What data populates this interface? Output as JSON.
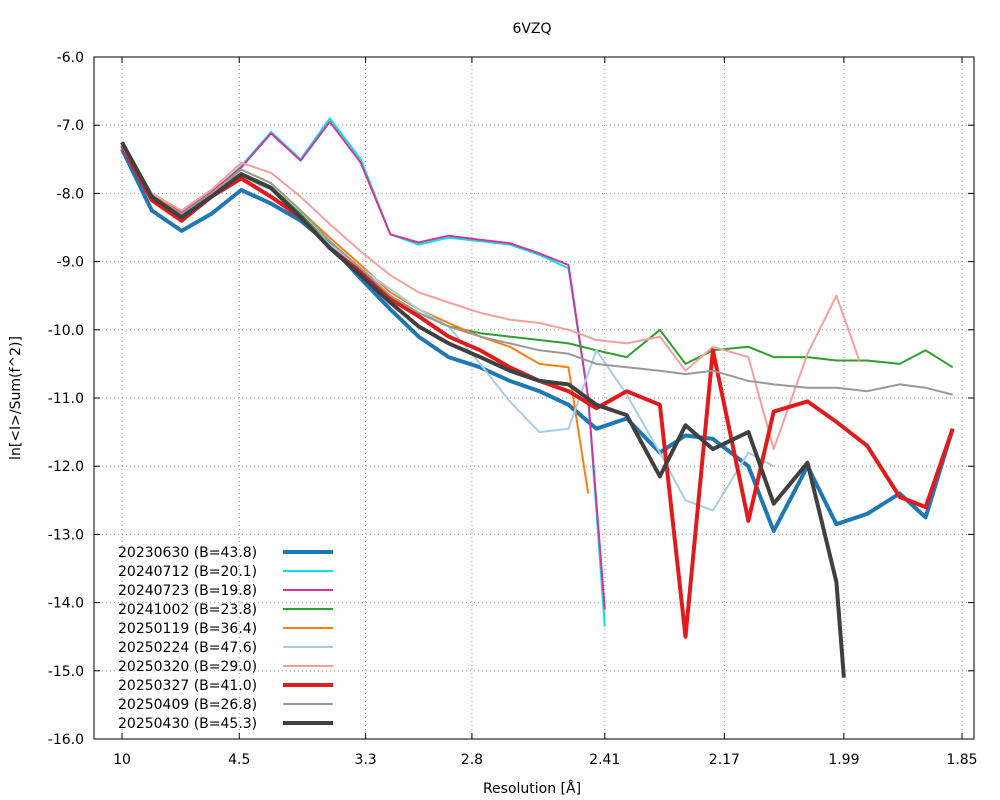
{
  "chart_data": {
    "type": "line",
    "title": "6VZQ",
    "xlabel": "Resolution [Å]",
    "ylabel": "ln[<I>/Sum(f^2)]",
    "x_ticks": [
      "10",
      "4.5",
      "3.3",
      "2.8",
      "2.41",
      "2.17",
      "1.99",
      "1.85"
    ],
    "x_tick_values": [
      10,
      4.5,
      3.3,
      2.8,
      2.41,
      2.17,
      1.99,
      1.85
    ],
    "x_scale": "inverse-square (1/d^2)",
    "xlim": [
      10,
      1.85
    ],
    "ylim": [
      -16.0,
      -6.0
    ],
    "y_ticks": [
      "-6.0",
      "-7.0",
      "-8.0",
      "-9.0",
      "-10.0",
      "-11.0",
      "-12.0",
      "-13.0",
      "-14.0",
      "-15.0",
      "-16.0"
    ],
    "grid": true,
    "legend_position": "bottom-left",
    "series": [
      {
        "name": "20230630 (B=43.8)",
        "color": "#1f77b4",
        "width": "thick",
        "x": [
          10,
          7.07,
          5.77,
          5.0,
          4.47,
          4.08,
          3.78,
          3.54,
          3.33,
          3.16,
          3.02,
          2.89,
          2.77,
          2.67,
          2.58,
          2.5,
          2.43,
          2.36,
          2.29,
          2.24,
          2.19,
          2.13,
          2.09,
          2.04,
          2.0,
          1.96,
          1.92,
          1.89,
          1.86
        ],
        "y": [
          -7.35,
          -8.25,
          -8.55,
          -8.3,
          -7.95,
          -8.15,
          -8.4,
          -8.75,
          -9.25,
          -9.7,
          -10.1,
          -10.4,
          -10.55,
          -10.75,
          -10.9,
          -11.1,
          -11.45,
          -11.3,
          -11.8,
          -11.55,
          -11.6,
          -12.0,
          -12.95,
          -12.0,
          -12.85,
          -12.7,
          -12.4,
          -12.75,
          -11.45
        ]
      },
      {
        "name": "20240712 (B=20.1)",
        "color": "#00e5e5",
        "width": "normal",
        "x": [
          10,
          7.07,
          5.77,
          5.0,
          4.47,
          4.08,
          3.78,
          3.54,
          3.33,
          3.16,
          3.02,
          2.89,
          2.77,
          2.67,
          2.58,
          2.5,
          2.45,
          2.41
        ],
        "y": [
          -7.3,
          -8.05,
          -8.3,
          -8.0,
          -7.6,
          -7.1,
          -7.5,
          -6.9,
          -7.5,
          -8.6,
          -8.75,
          -8.65,
          -8.7,
          -8.75,
          -8.9,
          -9.1,
          -11.0,
          -14.35
        ]
      },
      {
        "name": "20240723 (B=19.8)",
        "color": "#d6339b",
        "width": "normal",
        "x": [
          10,
          7.07,
          5.77,
          5.0,
          4.47,
          4.08,
          3.78,
          3.54,
          3.33,
          3.16,
          3.02,
          2.89,
          2.77,
          2.67,
          2.58,
          2.5,
          2.45,
          2.41
        ],
        "y": [
          -7.28,
          -8.03,
          -8.28,
          -7.98,
          -7.62,
          -7.12,
          -7.52,
          -6.95,
          -7.55,
          -8.6,
          -8.72,
          -8.62,
          -8.68,
          -8.73,
          -8.88,
          -9.05,
          -11.0,
          -14.1
        ]
      },
      {
        "name": "20241002 (B=23.8)",
        "color": "#2ca02c",
        "width": "normal",
        "x": [
          10,
          7.07,
          5.77,
          5.0,
          4.47,
          4.08,
          3.78,
          3.54,
          3.33,
          3.16,
          3.02,
          2.89,
          2.77,
          2.67,
          2.58,
          2.5,
          2.43,
          2.36,
          2.29,
          2.24,
          2.19,
          2.13,
          2.09,
          2.04,
          2.0,
          1.96,
          1.92,
          1.89,
          1.86
        ],
        "y": [
          -7.3,
          -8.05,
          -8.3,
          -8.0,
          -7.7,
          -7.9,
          -8.3,
          -8.75,
          -9.2,
          -9.5,
          -9.75,
          -9.95,
          -10.05,
          -10.1,
          -10.15,
          -10.2,
          -10.3,
          -10.4,
          -10.0,
          -10.5,
          -10.3,
          -10.25,
          -10.4,
          -10.4,
          -10.45,
          -10.45,
          -10.5,
          -10.3,
          -10.55
        ]
      },
      {
        "name": "20250119 (B=36.4)",
        "color": "#ff7f0e",
        "width": "normal",
        "x": [
          10,
          7.07,
          5.77,
          5.0,
          4.47,
          4.08,
          3.78,
          3.54,
          3.33,
          3.16,
          3.02,
          2.89,
          2.77,
          2.67,
          2.58,
          2.5,
          2.45
        ],
        "y": [
          -7.28,
          -8.02,
          -8.3,
          -8.02,
          -7.65,
          -7.85,
          -8.25,
          -8.65,
          -9.05,
          -9.45,
          -9.7,
          -9.9,
          -10.1,
          -10.25,
          -10.5,
          -10.55,
          -12.4
        ]
      },
      {
        "name": "20250224 (B=47.6)",
        "color": "#a6cee3",
        "width": "normal",
        "x": [
          10,
          7.07,
          5.77,
          5.0,
          4.47,
          4.08,
          3.78,
          3.54,
          3.33,
          3.16,
          3.02,
          2.89,
          2.77,
          2.67,
          2.58,
          2.5,
          2.43,
          2.36,
          2.29,
          2.24,
          2.19,
          2.13,
          2.09
        ],
        "y": [
          -7.3,
          -8.08,
          -8.35,
          -8.05,
          -7.75,
          -7.95,
          -8.35,
          -8.75,
          -9.1,
          -9.4,
          -9.7,
          -9.95,
          -10.5,
          -11.05,
          -11.5,
          -11.45,
          -10.3,
          -10.95,
          -11.8,
          -12.5,
          -12.65,
          -11.8,
          -12.0
        ]
      },
      {
        "name": "20250320 (B=29.0)",
        "color": "#f4a09c",
        "width": "normal",
        "x": [
          10,
          7.07,
          5.77,
          5.0,
          4.47,
          4.08,
          3.78,
          3.54,
          3.33,
          3.16,
          3.02,
          2.89,
          2.77,
          2.67,
          2.58,
          2.5,
          2.43,
          2.36,
          2.29,
          2.24,
          2.19,
          2.13,
          2.09,
          2.04,
          2.0,
          1.97
        ],
        "y": [
          -7.25,
          -8.0,
          -8.25,
          -7.95,
          -7.55,
          -7.7,
          -8.05,
          -8.45,
          -8.85,
          -9.2,
          -9.45,
          -9.6,
          -9.75,
          -9.85,
          -9.9,
          -10.0,
          -10.15,
          -10.2,
          -10.1,
          -10.6,
          -10.25,
          -10.4,
          -11.75,
          -10.35,
          -9.5,
          -10.45
        ]
      },
      {
        "name": "20250327 (B=41.0)",
        "color": "#e31a1c",
        "width": "thick",
        "x": [
          10,
          7.07,
          5.77,
          5.0,
          4.47,
          4.08,
          3.78,
          3.54,
          3.33,
          3.16,
          3.02,
          2.89,
          2.77,
          2.67,
          2.58,
          2.5,
          2.43,
          2.36,
          2.29,
          2.24,
          2.19,
          2.13,
          2.09,
          2.04,
          2.0,
          1.96,
          1.92,
          1.89,
          1.86
        ],
        "y": [
          -7.3,
          -8.1,
          -8.4,
          -8.05,
          -7.78,
          -8.05,
          -8.35,
          -8.8,
          -9.15,
          -9.55,
          -9.8,
          -10.1,
          -10.3,
          -10.55,
          -10.75,
          -10.9,
          -11.15,
          -10.9,
          -11.1,
          -14.5,
          -10.3,
          -12.8,
          -11.2,
          -11.05,
          -11.35,
          -11.7,
          -12.45,
          -12.6,
          -11.45
        ]
      },
      {
        "name": "20250409 (B=26.8)",
        "color": "#999999",
        "width": "normal",
        "x": [
          10,
          7.07,
          5.77,
          5.0,
          4.47,
          4.08,
          3.78,
          3.54,
          3.33,
          3.16,
          3.02,
          2.89,
          2.77,
          2.67,
          2.58,
          2.5,
          2.43,
          2.36,
          2.29,
          2.24,
          2.19,
          2.13,
          2.09,
          2.04,
          2.0,
          1.96,
          1.92,
          1.89,
          1.86
        ],
        "y": [
          -7.3,
          -8.05,
          -8.3,
          -8.0,
          -7.65,
          -7.85,
          -8.25,
          -8.7,
          -9.1,
          -9.5,
          -9.75,
          -9.95,
          -10.1,
          -10.2,
          -10.3,
          -10.35,
          -10.5,
          -10.55,
          -10.6,
          -10.65,
          -10.6,
          -10.75,
          -10.8,
          -10.85,
          -10.85,
          -10.9,
          -10.8,
          -10.85,
          -10.95
        ]
      },
      {
        "name": "20250430 (B=45.3)",
        "color": "#404040",
        "width": "thick",
        "x": [
          10,
          7.07,
          5.77,
          5.0,
          4.47,
          4.08,
          3.78,
          3.54,
          3.33,
          3.16,
          3.02,
          2.89,
          2.77,
          2.67,
          2.58,
          2.5,
          2.43,
          2.36,
          2.29,
          2.24,
          2.19,
          2.13,
          2.09,
          2.04,
          2.0,
          1.99
        ],
        "y": [
          -7.25,
          -8.05,
          -8.35,
          -8.05,
          -7.72,
          -7.92,
          -8.35,
          -8.8,
          -9.2,
          -9.6,
          -9.95,
          -10.2,
          -10.4,
          -10.6,
          -10.75,
          -10.8,
          -11.1,
          -11.25,
          -12.15,
          -11.4,
          -11.75,
          -11.5,
          -12.55,
          -11.95,
          -13.7,
          -15.1
        ]
      }
    ]
  }
}
